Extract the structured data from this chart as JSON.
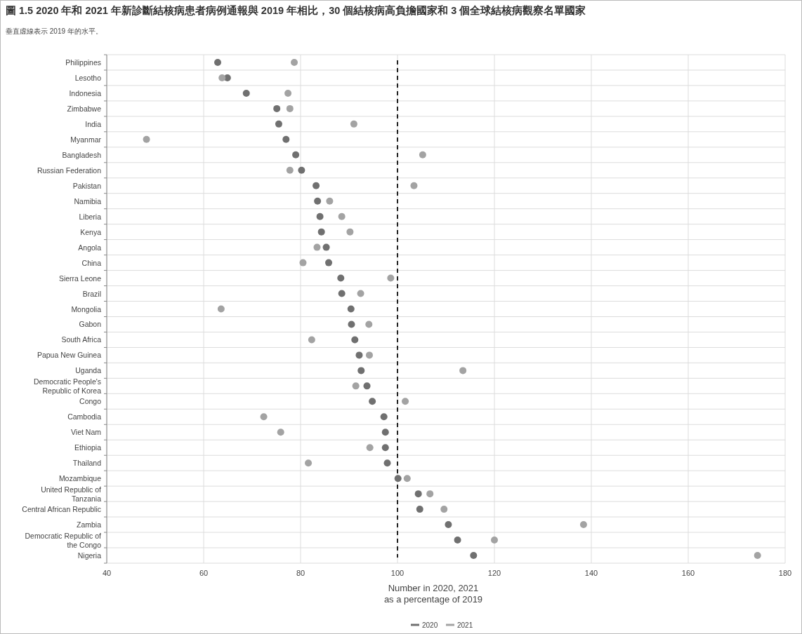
{
  "chart_data": {
    "type": "scatter",
    "orientation": "horizontal",
    "title": "圖 1.5  2020 年和 2021 年新診斷結核病患者病例通報與 2019 年相比，30 個結核病高負擔國家和 3 個全球結核病觀察名單國家",
    "subtitle": "垂直虛線表示 2019 年的水平。",
    "xlabel": "Number in 2020, 2021\nas a percentage of 2019",
    "categories": [
      "Philippines",
      "Lesotho",
      "Indonesia",
      "Zimbabwe",
      "India",
      "Myanmar",
      "Bangladesh",
      "Russian Federation",
      "Pakistan",
      "Namibia",
      "Liberia",
      "Kenya",
      "Angola",
      "China",
      "Sierra Leone",
      "Brazil",
      "Mongolia",
      "Gabon",
      "South Africa",
      "Papua New Guinea",
      "Uganda",
      "Democratic People's Republic of Korea",
      "Congo",
      "Cambodia",
      "Viet Nam",
      "Ethiopia",
      "Thailand",
      "Mozambique",
      "United Republic of Tanzania",
      "Central African Republic",
      "Zambia",
      "Democratic Republic of the Congo",
      "Nigeria"
    ],
    "series": [
      {
        "name": "2020",
        "color": "#707070",
        "values": [
          62.9,
          64.9,
          68.8,
          75.1,
          75.5,
          77.0,
          79.0,
          80.2,
          83.2,
          83.5,
          84.0,
          84.3,
          85.3,
          85.8,
          88.3,
          88.5,
          90.4,
          90.5,
          91.2,
          92.1,
          92.5,
          93.7,
          94.8,
          97.2,
          97.5,
          97.5,
          97.9,
          100.1,
          104.3,
          104.6,
          110.5,
          112.4,
          115.7
        ]
      },
      {
        "name": "2021",
        "color": "#a3a3a3",
        "values": [
          78.7,
          63.8,
          77.4,
          77.8,
          91.0,
          48.2,
          105.2,
          77.8,
          103.4,
          86.0,
          88.5,
          90.2,
          83.4,
          80.5,
          98.6,
          92.4,
          63.6,
          94.1,
          82.3,
          94.2,
          113.5,
          91.4,
          101.6,
          72.4,
          75.9,
          94.3,
          81.6,
          102.0,
          106.7,
          109.6,
          138.4,
          120.0,
          174.3
        ]
      }
    ],
    "xlim": [
      40,
      180
    ],
    "xticks": [
      40,
      60,
      80,
      100,
      120,
      140,
      160,
      180
    ],
    "ref_lines": [
      {
        "axis": "x",
        "value": 100,
        "color": "#222222",
        "line_style": "dashed"
      }
    ],
    "grid": true,
    "legend": "bottom",
    "marker": "circle"
  }
}
